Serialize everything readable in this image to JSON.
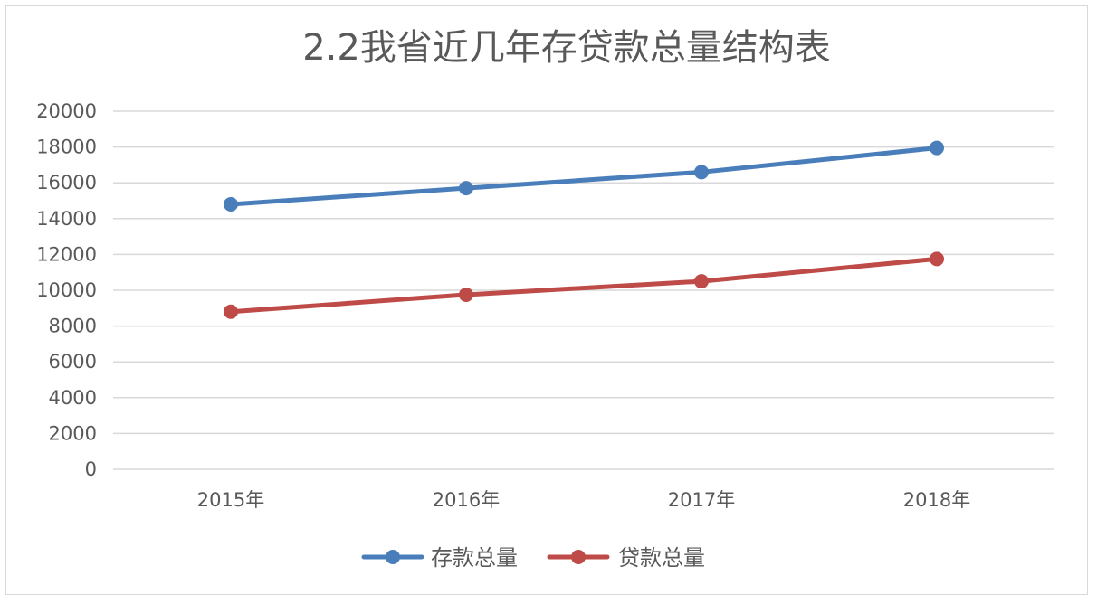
{
  "chart_data": {
    "type": "line",
    "title": "2.2我省近几年存贷款总量结构表",
    "categories": [
      "2015年",
      "2016年",
      "2017年",
      "2018年"
    ],
    "series": [
      {
        "name": "存款总量",
        "values": [
          14800,
          15700,
          16600,
          17950
        ],
        "color": "#4a7ebb"
      },
      {
        "name": "贷款总量",
        "values": [
          8800,
          9750,
          10500,
          11750
        ],
        "color": "#be4b48"
      }
    ],
    "ylim": [
      0,
      20000
    ],
    "yticks": [
      0,
      2000,
      4000,
      6000,
      8000,
      10000,
      12000,
      14000,
      16000,
      18000,
      20000
    ],
    "grid": true,
    "legend_position": "bottom"
  }
}
